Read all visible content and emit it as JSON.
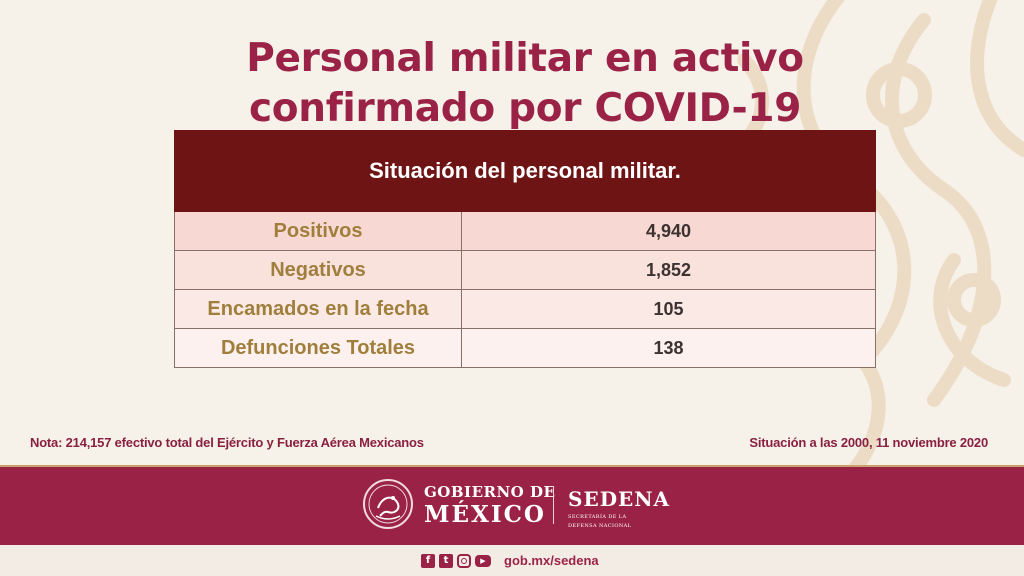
{
  "title": {
    "line1": "Personal militar en activo",
    "line2": "confirmado por COVID-19"
  },
  "table": {
    "header": "Situación del personal militar.",
    "rows": [
      {
        "label": "Positivos",
        "value": "4,940"
      },
      {
        "label": "Negativos",
        "value": "1,852"
      },
      {
        "label": "Encamados en la fecha",
        "value": "105"
      },
      {
        "label": "Defunciones Totales",
        "value": "138"
      }
    ]
  },
  "note": "Nota: 214,157 efectivo total del Ejército y Fuerza Aérea Mexicanos",
  "situacion": "Situación a las 2000, 11 noviembre 2020",
  "footer": {
    "gob_line1": "GOBIERNO DE",
    "gob_line2": "MÉXICO",
    "sedena": "SEDENA",
    "sedena_sub1": "SECRETARÍA DE LA",
    "sedena_sub2": "DEFENSA NACIONAL",
    "website": "gob.mx/sedena"
  },
  "icons": {
    "social": [
      "facebook-icon",
      "twitter-icon",
      "instagram-icon",
      "youtube-icon"
    ],
    "seal": "coat-of-arms-icon"
  },
  "colors": {
    "title": "#9b2247",
    "table_header": "#6f1414",
    "label_text": "#a07f3d",
    "footer": "#9b2247",
    "background": "#f6f2ea"
  }
}
